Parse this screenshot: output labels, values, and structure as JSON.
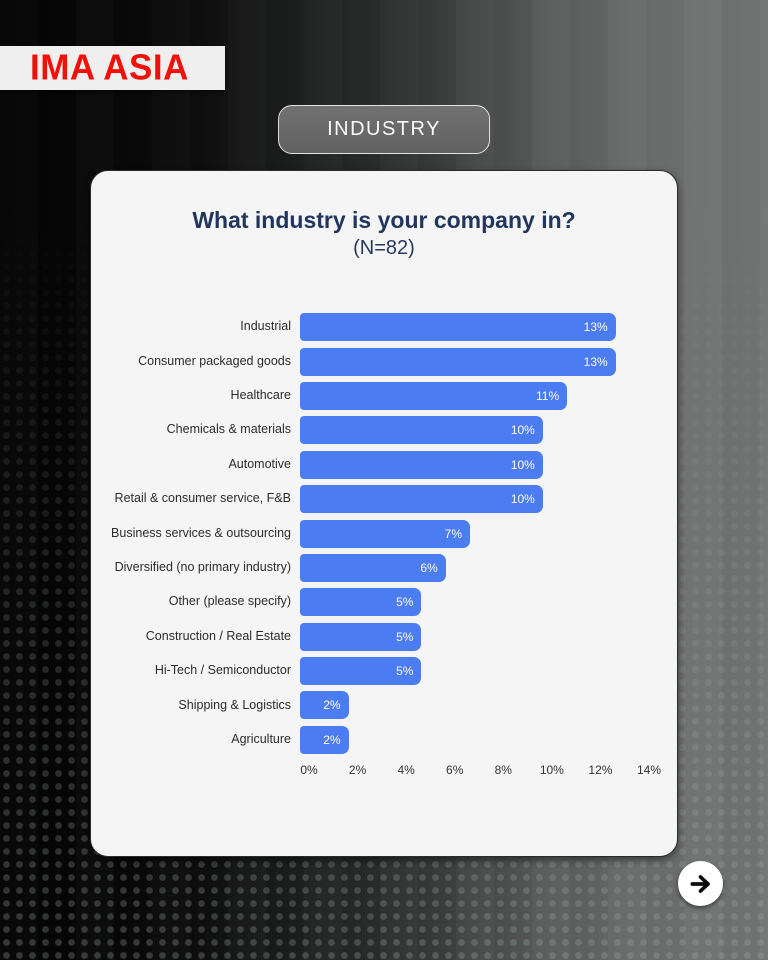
{
  "logo": {
    "text": "IMA ASIA",
    "color": "#f2100a",
    "background": "#efefef"
  },
  "section_pill": {
    "label": "INDUSTRY"
  },
  "nav": {
    "next_icon": "arrow-right"
  },
  "colors": {
    "bar_blue": "#4c7cf2",
    "title_navy": "#21365e",
    "card_background": "#f5f5f6",
    "background_left": "#030303",
    "background_right": "#737675"
  },
  "chart_data": {
    "type": "bar",
    "orientation": "horizontal",
    "title": "What industry is your company in?",
    "subtitle": "(N=82)",
    "categories": [
      "Industrial",
      "Consumer packaged goods",
      "Healthcare",
      "Chemicals & materials",
      "Automotive",
      "Retail & consumer service, F&B",
      "Business services & outsourcing",
      "Diversified (no primary industry)",
      "Other (please specify)",
      "Construction / Real Estate",
      "Hi-Tech / Semiconductor",
      "Shipping & Logistics",
      "Agriculture"
    ],
    "values": [
      13,
      13,
      11,
      10,
      10,
      10,
      7,
      6,
      5,
      5,
      5,
      2,
      2
    ],
    "value_labels": [
      "13%",
      "13%",
      "11%",
      "10%",
      "10%",
      "10%",
      "7%",
      "6%",
      "5%",
      "5%",
      "5%",
      "2%",
      "2%"
    ],
    "xlabel": "",
    "ylabel": "",
    "xlim": [
      0,
      14
    ],
    "x_tick_values": [
      0,
      2,
      4,
      6,
      8,
      10,
      12,
      14
    ],
    "x_ticks": [
      "0%",
      "2%",
      "4%",
      "6%",
      "8%",
      "10%",
      "12%",
      "14%"
    ],
    "bar_color": "#4c7cf2",
    "grid": false,
    "legend": false
  }
}
